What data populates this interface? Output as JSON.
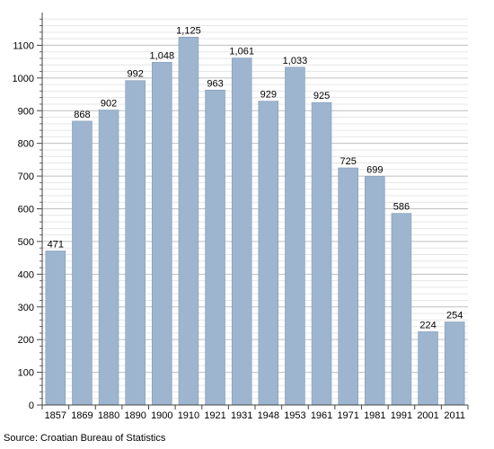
{
  "chart_data": {
    "type": "bar",
    "categories": [
      "1857",
      "1869",
      "1880",
      "1890",
      "1900",
      "1910",
      "1921",
      "1931",
      "1948",
      "1953",
      "1961",
      "1971",
      "1981",
      "1991",
      "2001",
      "2011"
    ],
    "values": [
      471,
      868,
      902,
      992,
      1048,
      1125,
      963,
      1061,
      929,
      1033,
      925,
      725,
      699,
      586,
      224,
      254
    ],
    "data_labels": [
      "471",
      "868",
      "902",
      "992",
      "1,048",
      "1,125",
      "963",
      "1,061",
      "929",
      "1,033",
      "925",
      "725",
      "699",
      "586",
      "224",
      "254"
    ],
    "y_ticks": [
      0,
      100,
      200,
      300,
      400,
      500,
      600,
      700,
      800,
      900,
      1000,
      1100
    ],
    "ylim": [
      0,
      1200
    ],
    "grid": true,
    "bar_color": "#9db5cf",
    "bar_edge_color": "#7f9ab8"
  },
  "source_note": "Source: Croatian Bureau of Statistics"
}
